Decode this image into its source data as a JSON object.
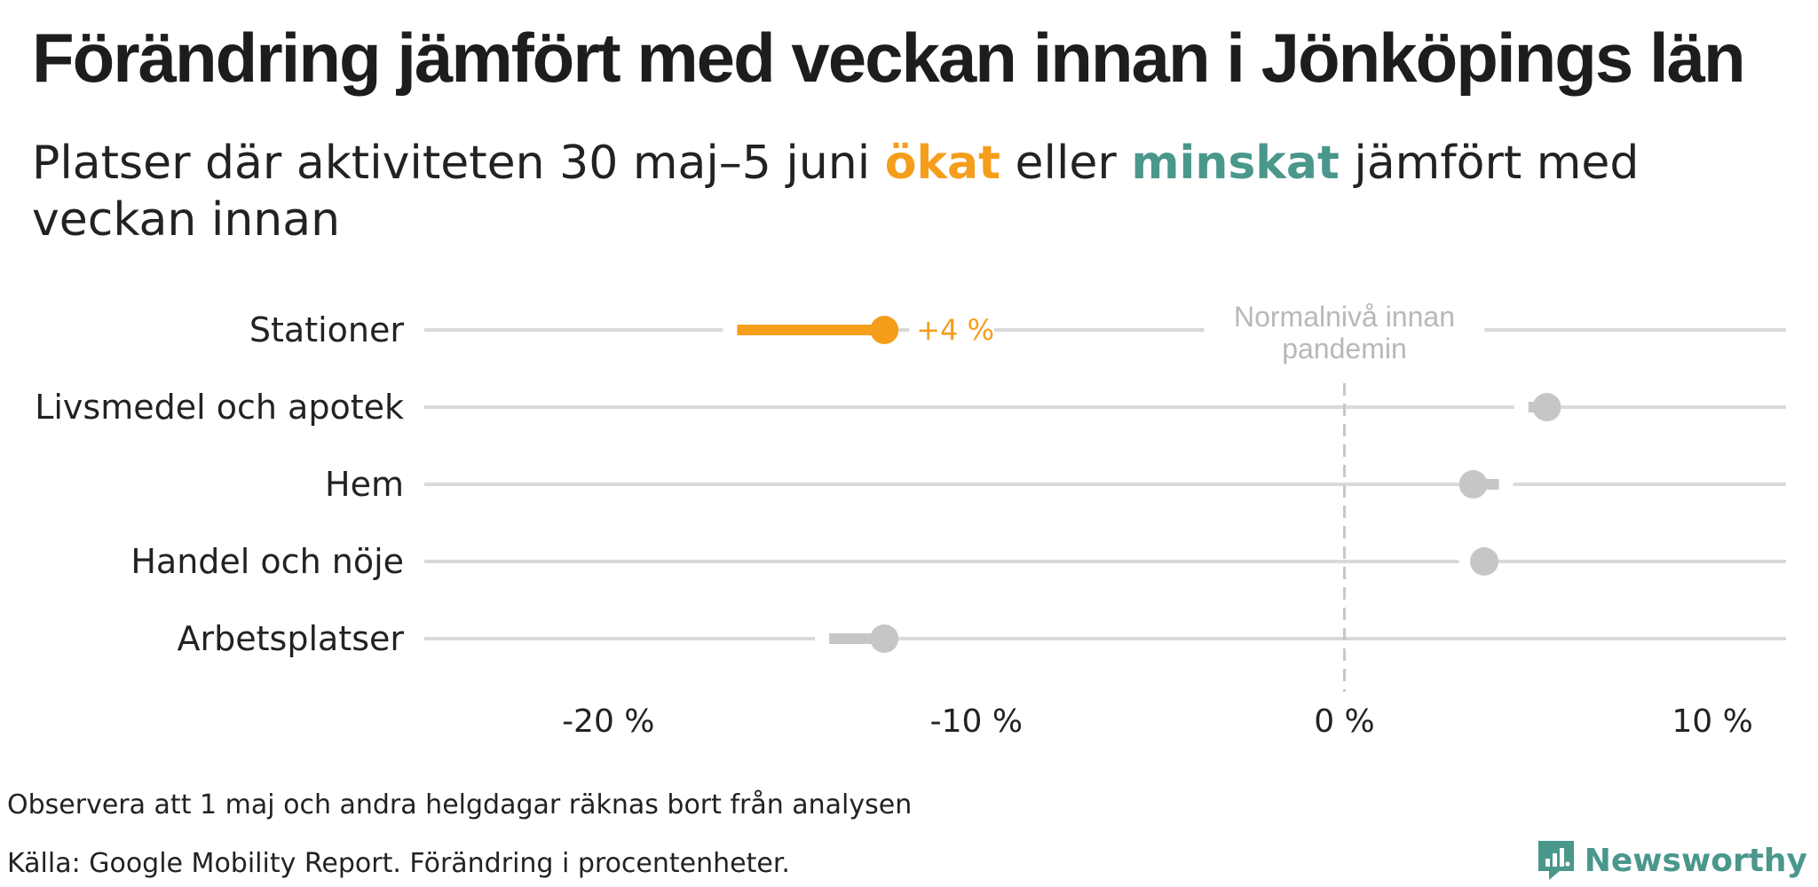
{
  "title": "Förändring jämfört med veckan innan i Jönköpings län",
  "subtitle": {
    "part1": "Platser där aktiviteten 30 maj–5 juni ",
    "increase_word": "ökat",
    "part2": " eller ",
    "decrease_word": "minskat",
    "part3": " jämfört med veckan innan"
  },
  "colors": {
    "increase": "#f59e1b",
    "decrease": "#4a978c",
    "neutral": "#c6c6c6",
    "gridline": "#d9d9d9",
    "reference": "#c8c8c8"
  },
  "chart_data": {
    "type": "dumbbell",
    "categories": [
      "Stationer",
      "Livsmedel och apotek",
      "Hem",
      "Handel och nöje",
      "Arbetsplatser"
    ],
    "series": [
      {
        "values_from": [
          -16.5,
          5.0,
          4.2,
          3.5,
          -14.0
        ],
        "values_to": [
          -12.5,
          5.5,
          3.5,
          3.8,
          -12.5
        ]
      }
    ],
    "changes": [
      4,
      0.5,
      -0.7,
      0.3,
      1.5
    ],
    "highlight": [
      true,
      false,
      false,
      false,
      false
    ],
    "value_labels": [
      "+4 %",
      "",
      "",
      "",
      ""
    ],
    "xlim": [
      -25,
      12
    ],
    "xticks": [
      -20,
      -10,
      0,
      10
    ],
    "xtick_labels": [
      "-20 %",
      "-10 %",
      "0 %",
      "10 %"
    ],
    "reference_line": {
      "x": 0,
      "label_line1": "Normalnivå innan",
      "label_line2": "pandemin"
    },
    "grid": true
  },
  "footer": {
    "note": "Observera att 1 maj och andra helgdagar räknas bort från analysen",
    "source": "Källa: Google Mobility Report. Förändring i procentenheter.",
    "brand": "Newsworthy"
  }
}
